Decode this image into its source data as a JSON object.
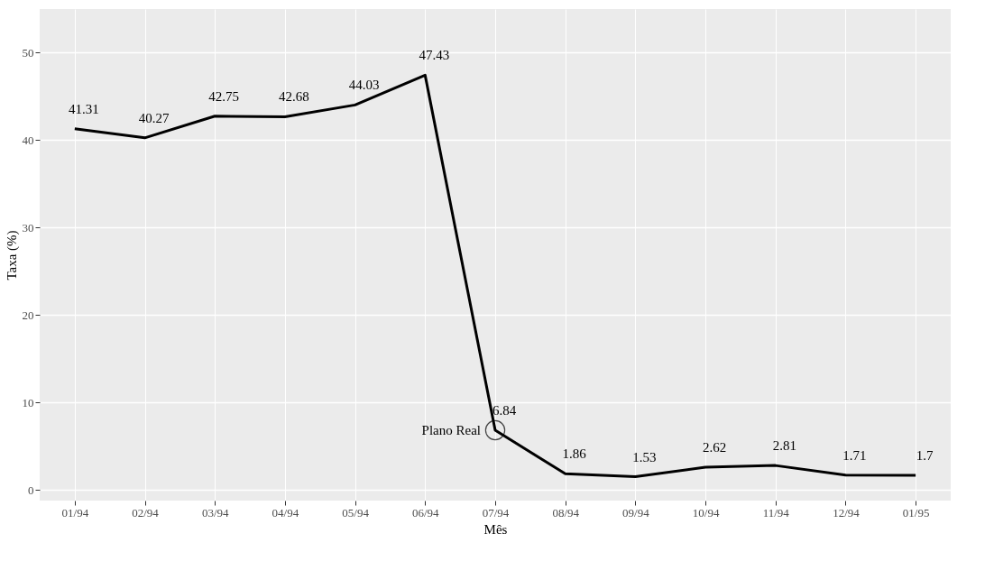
{
  "chart_data": {
    "type": "line",
    "xlabel": "Mês",
    "ylabel": "Taxa (%)",
    "categories": [
      "01/94",
      "02/94",
      "03/94",
      "04/94",
      "05/94",
      "06/94",
      "07/94",
      "08/94",
      "09/94",
      "10/94",
      "11/94",
      "12/94",
      "01/95"
    ],
    "series": [
      {
        "color": "#000000",
        "values": [
          41.31,
          40.27,
          42.75,
          42.68,
          44.03,
          47.43,
          6.84,
          1.86,
          1.53,
          2.62,
          2.81,
          1.71,
          1.7
        ]
      }
    ],
    "ylim": [
      -1.2,
      55
    ],
    "yticks": [
      0,
      10,
      20,
      30,
      40,
      50
    ],
    "grid": true,
    "data_labels": true,
    "marker": "none",
    "line_style": "solid",
    "annotations": [
      {
        "text": "Plano Real",
        "x": "07/94",
        "y": 6.84
      }
    ]
  }
}
